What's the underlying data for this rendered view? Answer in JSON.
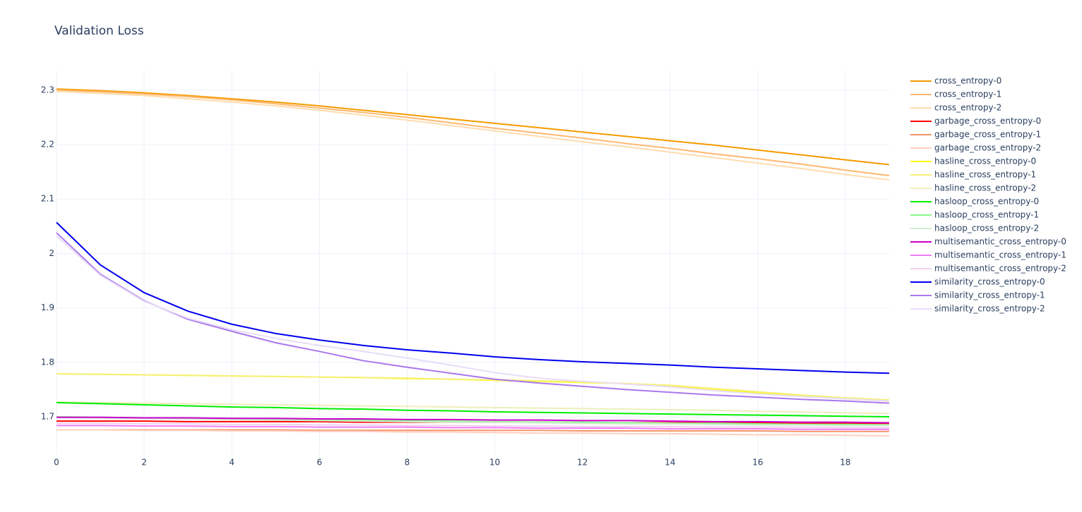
{
  "chart_data": {
    "type": "line",
    "title": "Validation Loss",
    "x": [
      0,
      1,
      2,
      3,
      4,
      5,
      6,
      7,
      8,
      9,
      10,
      11,
      12,
      13,
      14,
      15,
      16,
      17,
      18,
      19
    ],
    "xlim": [
      0,
      19
    ],
    "xticks": [
      0,
      2,
      4,
      6,
      8,
      10,
      12,
      14,
      16,
      18
    ],
    "ylim": [
      1.63,
      2.336
    ],
    "yticks": [
      1.7,
      1.8,
      1.9,
      2,
      2.1,
      2.2,
      2.3
    ],
    "grid": true,
    "legend": "right",
    "series": [
      {
        "name": "cross_entropy-0",
        "color": "#f59b00",
        "values": [
          2.302,
          2.299,
          2.295,
          2.29,
          2.284,
          2.278,
          2.271,
          2.263,
          2.255,
          2.247,
          2.239,
          2.231,
          2.223,
          2.215,
          2.207,
          2.199,
          2.19,
          2.181,
          2.172,
          2.163
        ]
      },
      {
        "name": "cross_entropy-1",
        "color": "#ffb870",
        "values": [
          2.3,
          2.297,
          2.293,
          2.288,
          2.282,
          2.275,
          2.267,
          2.259,
          2.25,
          2.24,
          2.23,
          2.221,
          2.212,
          2.202,
          2.193,
          2.183,
          2.174,
          2.164,
          2.153,
          2.143
        ]
      },
      {
        "name": "cross_entropy-2",
        "color": "#ffdcae",
        "values": [
          2.298,
          2.294,
          2.29,
          2.284,
          2.278,
          2.271,
          2.263,
          2.254,
          2.245,
          2.235,
          2.225,
          2.215,
          2.205,
          2.196,
          2.186,
          2.176,
          2.166,
          2.156,
          2.145,
          2.135
        ]
      },
      {
        "name": "garbage_cross_entropy-0",
        "color": "#ff0000",
        "values": [
          1.692,
          1.692,
          1.692,
          1.691,
          1.691,
          1.691,
          1.691,
          1.69,
          1.69,
          1.69,
          1.69,
          1.69,
          1.689,
          1.689,
          1.689,
          1.689,
          1.689,
          1.688,
          1.688,
          1.688
        ]
      },
      {
        "name": "garbage_cross_entropy-1",
        "color": "#f4946a",
        "values": [
          1.676,
          1.676,
          1.676,
          1.676,
          1.676,
          1.676,
          1.675,
          1.675,
          1.675,
          1.675,
          1.675,
          1.675,
          1.674,
          1.674,
          1.674,
          1.674,
          1.674,
          1.673,
          1.673,
          1.673
        ]
      },
      {
        "name": "garbage_cross_entropy-2",
        "color": "#ffd0c0",
        "values": [
          1.676,
          1.676,
          1.675,
          1.675,
          1.674,
          1.674,
          1.673,
          1.673,
          1.672,
          1.672,
          1.671,
          1.67,
          1.67,
          1.669,
          1.669,
          1.668,
          1.667,
          1.667,
          1.666,
          1.665
        ]
      },
      {
        "name": "hasline_cross_entropy-0",
        "color": "#ffff00",
        "values": [
          1.779,
          1.778,
          1.777,
          1.776,
          1.775,
          1.774,
          1.773,
          1.772,
          1.77,
          1.769,
          1.767,
          1.765,
          1.763,
          1.761,
          1.757,
          1.751,
          1.744,
          1.738,
          1.733,
          1.729
        ]
      },
      {
        "name": "hasline_cross_entropy-1",
        "color": "#f5f07a",
        "values": [
          1.779,
          1.778,
          1.777,
          1.776,
          1.775,
          1.774,
          1.773,
          1.772,
          1.771,
          1.769,
          1.768,
          1.766,
          1.764,
          1.761,
          1.758,
          1.752,
          1.746,
          1.74,
          1.735,
          1.731
        ]
      },
      {
        "name": "hasline_cross_entropy-2",
        "color": "#eeeebb",
        "values": [
          1.727,
          1.726,
          1.725,
          1.724,
          1.723,
          1.722,
          1.721,
          1.72,
          1.719,
          1.718,
          1.717,
          1.716,
          1.715,
          1.714,
          1.713,
          1.712,
          1.71,
          1.709,
          1.707,
          1.706
        ]
      },
      {
        "name": "hasloop_cross_entropy-0",
        "color": "#00ee00",
        "values": [
          1.726,
          1.724,
          1.722,
          1.72,
          1.718,
          1.717,
          1.715,
          1.714,
          1.712,
          1.711,
          1.709,
          1.708,
          1.707,
          1.706,
          1.705,
          1.704,
          1.703,
          1.702,
          1.701,
          1.7
        ]
      },
      {
        "name": "hasloop_cross_entropy-1",
        "color": "#88f888",
        "values": [
          1.7,
          1.699,
          1.698,
          1.697,
          1.697,
          1.696,
          1.695,
          1.694,
          1.693,
          1.692,
          1.691,
          1.69,
          1.69,
          1.689,
          1.688,
          1.688,
          1.687,
          1.686,
          1.686,
          1.685
        ]
      },
      {
        "name": "hasloop_cross_entropy-2",
        "color": "#cceecc",
        "values": [
          1.699,
          1.698,
          1.697,
          1.696,
          1.695,
          1.694,
          1.693,
          1.692,
          1.691,
          1.69,
          1.69,
          1.689,
          1.688,
          1.687,
          1.687,
          1.686,
          1.685,
          1.685,
          1.684,
          1.684
        ]
      },
      {
        "name": "multisemantic_cross_entropy-0",
        "color": "#cc00cc",
        "values": [
          1.699,
          1.699,
          1.698,
          1.698,
          1.697,
          1.697,
          1.696,
          1.696,
          1.695,
          1.695,
          1.694,
          1.694,
          1.693,
          1.693,
          1.692,
          1.691,
          1.691,
          1.69,
          1.69,
          1.689
        ]
      },
      {
        "name": "multisemantic_cross_entropy-1",
        "color": "#f07cf8",
        "values": [
          1.684,
          1.684,
          1.683,
          1.683,
          1.682,
          1.682,
          1.681,
          1.681,
          1.681,
          1.68,
          1.68,
          1.679,
          1.679,
          1.679,
          1.678,
          1.678,
          1.678,
          1.677,
          1.677,
          1.677
        ]
      },
      {
        "name": "multisemantic_cross_entropy-2",
        "color": "#f0d0f0",
        "values": [
          1.688,
          1.688,
          1.687,
          1.687,
          1.686,
          1.686,
          1.685,
          1.685,
          1.684,
          1.684,
          1.683,
          1.683,
          1.682,
          1.682,
          1.682,
          1.681,
          1.681,
          1.681,
          1.68,
          1.68
        ]
      },
      {
        "name": "similarity_cross_entropy-0",
        "color": "#0000ee",
        "values": [
          2.057,
          1.979,
          1.928,
          1.894,
          1.87,
          1.853,
          1.841,
          1.831,
          1.823,
          1.817,
          1.81,
          1.805,
          1.801,
          1.798,
          1.795,
          1.791,
          1.788,
          1.785,
          1.782,
          1.78
        ]
      },
      {
        "name": "similarity_cross_entropy-1",
        "color": "#aa77ee",
        "values": [
          2.038,
          1.962,
          1.913,
          1.879,
          1.857,
          1.836,
          1.82,
          1.803,
          1.791,
          1.78,
          1.769,
          1.762,
          1.756,
          1.75,
          1.745,
          1.74,
          1.736,
          1.732,
          1.729,
          1.725
        ]
      },
      {
        "name": "similarity_cross_entropy-2",
        "color": "#e8dcf8",
        "values": [
          2.032,
          1.96,
          1.912,
          1.881,
          1.86,
          1.844,
          1.831,
          1.82,
          1.808,
          1.795,
          1.781,
          1.771,
          1.765,
          1.76,
          1.755,
          1.748,
          1.742,
          1.737,
          1.733,
          1.729
        ]
      }
    ]
  }
}
